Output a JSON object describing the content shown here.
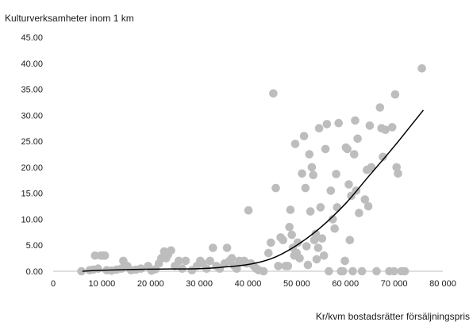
{
  "chart_data": {
    "type": "scatter",
    "ylabel": "Kulturverksamheter inom 1 km",
    "xlabel": "Kr/kvm bostadsrätter försäljningspris",
    "xlim": [
      0,
      80000
    ],
    "ylim": [
      0,
      45
    ],
    "x_ticks": [
      "0",
      "10 000",
      "20 000",
      "30 000",
      "40 000",
      "50 000",
      "60 000",
      "70 000",
      "80 000"
    ],
    "y_ticks": [
      "0.00",
      "5.00",
      "10.00",
      "15.00",
      "20.00",
      "25.00",
      "30.00",
      "35.00",
      "40.00",
      "45.00"
    ],
    "grid": false,
    "colors": {
      "points": "#bdbdbd",
      "trend": "#000000",
      "axis": "#bfbfbf"
    },
    "trendline": {
      "type": "polynomial",
      "degree": 3,
      "x": [
        6000,
        10000,
        20000,
        30000,
        35000,
        40000,
        45000,
        50000,
        55000,
        60000,
        65000,
        70000,
        76000
      ],
      "y": [
        0,
        0.2,
        0.4,
        0.5,
        0.8,
        1.3,
        2.5,
        5.0,
        8.5,
        13.0,
        18.5,
        24.0,
        31.0
      ]
    },
    "points": [
      [
        5800,
        0
      ],
      [
        7500,
        0.2
      ],
      [
        8200,
        0.3
      ],
      [
        8600,
        3
      ],
      [
        9200,
        0.5
      ],
      [
        9800,
        3
      ],
      [
        10200,
        3
      ],
      [
        10600,
        3
      ],
      [
        11000,
        0.2
      ],
      [
        12000,
        0.1
      ],
      [
        13000,
        0.3
      ],
      [
        14000,
        0.5
      ],
      [
        14400,
        2
      ],
      [
        15200,
        1
      ],
      [
        16000,
        0.2
      ],
      [
        17000,
        0.3
      ],
      [
        18000,
        0.5
      ],
      [
        19500,
        1
      ],
      [
        20200,
        0.1
      ],
      [
        21000,
        0.4
      ],
      [
        21700,
        1.5
      ],
      [
        22200,
        2.5
      ],
      [
        22800,
        3.8
      ],
      [
        23200,
        2.5
      ],
      [
        23600,
        3.2
      ],
      [
        24200,
        4
      ],
      [
        25000,
        1
      ],
      [
        25800,
        2
      ],
      [
        26500,
        0.5
      ],
      [
        27200,
        2
      ],
      [
        28500,
        0.2
      ],
      [
        29500,
        1
      ],
      [
        30200,
        2
      ],
      [
        30700,
        1.5
      ],
      [
        31500,
        0.5
      ],
      [
        32200,
        2
      ],
      [
        32800,
        4.5
      ],
      [
        33500,
        1
      ],
      [
        34200,
        0.5
      ],
      [
        35200,
        1.5
      ],
      [
        35700,
        4.5
      ],
      [
        36200,
        2
      ],
      [
        36700,
        2.5
      ],
      [
        37200,
        1
      ],
      [
        37700,
        0.5
      ],
      [
        38200,
        2
      ],
      [
        38700,
        1.8
      ],
      [
        39200,
        2
      ],
      [
        39700,
        1.5
      ],
      [
        40100,
        11.7
      ],
      [
        40600,
        1.5
      ],
      [
        41200,
        1
      ],
      [
        41700,
        0.5
      ],
      [
        42200,
        0.2
      ],
      [
        43200,
        0
      ],
      [
        44200,
        3.5
      ],
      [
        44700,
        5.5
      ],
      [
        45200,
        34.2
      ],
      [
        45700,
        16
      ],
      [
        46200,
        1
      ],
      [
        46700,
        6.5
      ],
      [
        47200,
        6
      ],
      [
        47700,
        1
      ],
      [
        48200,
        1
      ],
      [
        48500,
        8.5
      ],
      [
        48700,
        11.8
      ],
      [
        49000,
        7
      ],
      [
        49200,
        4.5
      ],
      [
        49500,
        3
      ],
      [
        49700,
        24.5
      ],
      [
        50000,
        3.5
      ],
      [
        50200,
        5.5
      ],
      [
        50600,
        2.5
      ],
      [
        51100,
        18.8
      ],
      [
        51500,
        26
      ],
      [
        51800,
        16
      ],
      [
        52000,
        4.8
      ],
      [
        52300,
        1.2
      ],
      [
        52600,
        22.5
      ],
      [
        52800,
        11.5
      ],
      [
        53100,
        20
      ],
      [
        53400,
        18.5
      ],
      [
        53600,
        6
      ],
      [
        53900,
        7.2
      ],
      [
        54100,
        2.3
      ],
      [
        54400,
        4.5
      ],
      [
        54600,
        27.5
      ],
      [
        54900,
        12.3
      ],
      [
        55200,
        6.3
      ],
      [
        55600,
        3
      ],
      [
        55900,
        23.5
      ],
      [
        56200,
        28.3
      ],
      [
        56600,
        0
      ],
      [
        57000,
        15.5
      ],
      [
        57400,
        10
      ],
      [
        57800,
        8.2
      ],
      [
        58100,
        18.7
      ],
      [
        58300,
        12.3
      ],
      [
        58600,
        28.5
      ],
      [
        59100,
        0
      ],
      [
        59500,
        0
      ],
      [
        59900,
        2
      ],
      [
        60100,
        23.8
      ],
      [
        60400,
        23.5
      ],
      [
        60700,
        16.7
      ],
      [
        60900,
        6
      ],
      [
        61200,
        14.5
      ],
      [
        61500,
        0
      ],
      [
        61800,
        22.5
      ],
      [
        62000,
        29
      ],
      [
        62200,
        15.5
      ],
      [
        62500,
        25.5
      ],
      [
        62800,
        11.2
      ],
      [
        63400,
        0
      ],
      [
        64000,
        13.8
      ],
      [
        64400,
        19.5
      ],
      [
        64700,
        12.5
      ],
      [
        65000,
        28
      ],
      [
        65300,
        20
      ],
      [
        66400,
        0
      ],
      [
        67100,
        31.5
      ],
      [
        67400,
        27.5
      ],
      [
        67700,
        22
      ],
      [
        68200,
        27.2
      ],
      [
        69000,
        0
      ],
      [
        69600,
        27.7
      ],
      [
        70000,
        0
      ],
      [
        70200,
        34
      ],
      [
        70500,
        20
      ],
      [
        70800,
        18.8
      ],
      [
        71500,
        0
      ],
      [
        72200,
        0
      ],
      [
        75700,
        39
      ]
    ]
  }
}
